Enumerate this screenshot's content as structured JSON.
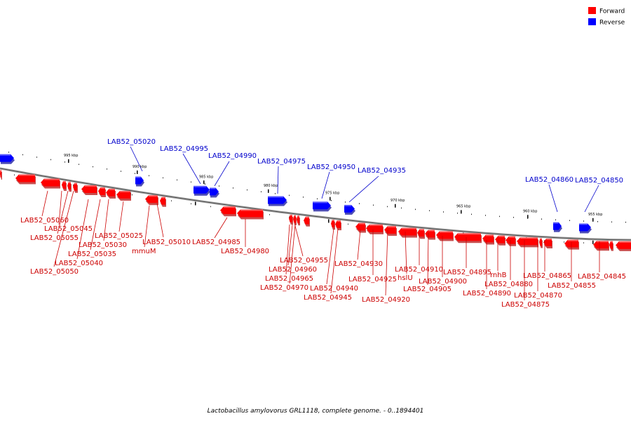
{
  "legend": {
    "forward_label": "Forward",
    "reverse_label": "Reverse",
    "forward_color": "#ff0000",
    "reverse_color": "#0000ff"
  },
  "caption": "Lactobacillus amylovorus GRL1118, complete genome. - 0..1894401",
  "axis_ticks": [
    "995 kbp",
    "990 kbp",
    "985 kbp",
    "980 kbp",
    "975 kbp",
    "970 kbp",
    "965 kbp",
    "960 kbp",
    "955 kbp"
  ],
  "forward_labels": [
    "LAB52_05060",
    "LAB52_05045",
    "LAB52_05055",
    "LAB52_05050",
    "LAB52_05040",
    "LAB52_05035",
    "LAB52_05030",
    "LAB52_05025",
    "LAB52_05010",
    "mmuM",
    "LAB52_04985",
    "LAB52_04980",
    "LAB52_04955",
    "LAB52_04960",
    "LAB52_04965",
    "LAB52_04970",
    "LAB52_04940",
    "LAB52_04945",
    "LAB52_04930",
    "LAB52_04925",
    "LAB52_04920",
    "hslU",
    "LAB52_04910",
    "LAB52_04905",
    "LAB52_04900",
    "LAB52_04895",
    "rnhB",
    "LAB52_04890",
    "LAB52_04880",
    "LAB52_04875",
    "LAB52_04870",
    "LAB52_04865",
    "LAB52_04855",
    "LAB52_04845"
  ],
  "reverse_labels": [
    "LAB52_05020",
    "LAB52_04995",
    "LAB52_04990",
    "LAB52_04975",
    "LAB52_04950",
    "LAB52_04935",
    "LAB52_04860",
    "LAB52_04850"
  ]
}
